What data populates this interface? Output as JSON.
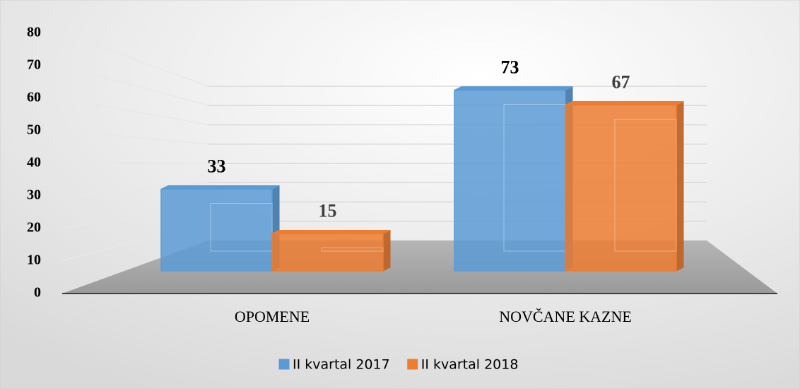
{
  "chart_data": {
    "type": "bar3d",
    "categories": [
      "OPOMENE",
      "NOVČANE KAZNE"
    ],
    "series": [
      {
        "name": "II kvartal 2017",
        "color": "#5b9bd5",
        "values": [
          33,
          73
        ]
      },
      {
        "name": "II kvartal 2018",
        "color": "#ed7d31",
        "values": [
          15,
          67
        ]
      }
    ],
    "ylim": [
      0,
      80
    ],
    "yticks": [
      0,
      10,
      20,
      30,
      40,
      50,
      60,
      70,
      80
    ],
    "grid": true,
    "legend": "bottom"
  }
}
